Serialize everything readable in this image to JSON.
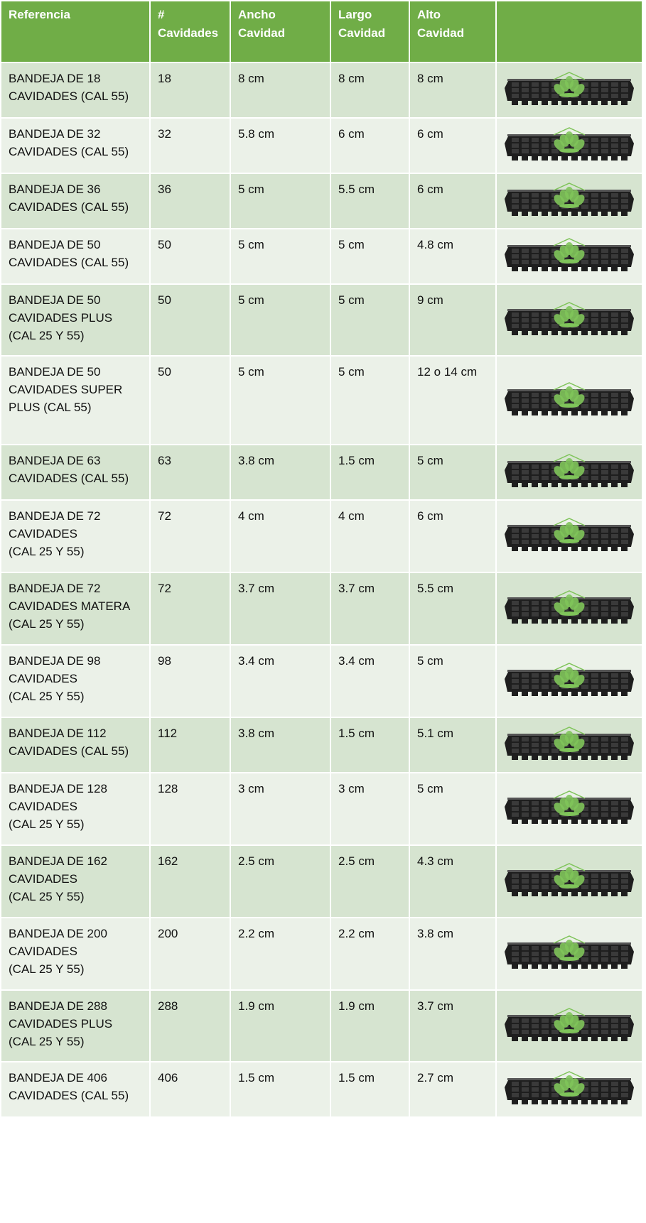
{
  "headers": {
    "reference": "Referencia",
    "cavities_line1": "#",
    "cavities_line2": "Cavidades",
    "width_line1": "Ancho",
    "width_line2": "Cavidad",
    "length_line1": "Largo",
    "length_line2": "Cavidad",
    "height_line1": "Alto",
    "height_line2": "Cavidad",
    "image": ""
  },
  "colors": {
    "header_green": "#70ad47",
    "row_dark": "#d6e4d0",
    "row_light": "#ebf1e8",
    "tray": "#1e1e1e",
    "logo": "#7fc45a"
  },
  "rows": [
    {
      "ref": [
        "BANDEJA DE 18",
        "CAVIDADES (CAL 55)"
      ],
      "cavities": "18",
      "width": "8 cm",
      "length": "8 cm",
      "height": "8 cm",
      "image_icon": "seedling-tray-icon"
    },
    {
      "ref": [
        "BANDEJA DE 32",
        "CAVIDADES (CAL 55)"
      ],
      "cavities": "32",
      "width": "5.8 cm",
      "length": "6 cm",
      "height": "6 cm",
      "image_icon": "seedling-tray-icon"
    },
    {
      "ref": [
        "BANDEJA DE 36",
        "CAVIDADES (CAL 55)"
      ],
      "cavities": "36",
      "width": "5 cm",
      "length": "5.5 cm",
      "height": "6 cm",
      "image_icon": "seedling-tray-icon"
    },
    {
      "ref": [
        "BANDEJA DE 50",
        "CAVIDADES (CAL 55)"
      ],
      "cavities": "50",
      "width": "5 cm",
      "length": "5 cm",
      "height": "4.8 cm",
      "image_icon": "seedling-tray-icon"
    },
    {
      "ref": [
        "BANDEJA DE 50",
        "CAVIDADES PLUS",
        "(CAL 25 Y 55)"
      ],
      "cavities": "50",
      "width": "5 cm",
      "length": "5 cm",
      "height": "9 cm",
      "image_icon": "seedling-tray-icon"
    },
    {
      "ref": [
        "BANDEJA DE 50",
        "CAVIDADES SUPER",
        "PLUS (CAL 55)"
      ],
      "cavities": "50",
      "width": "5 cm",
      "length": "5 cm",
      "height": "12 o 14 cm",
      "image_icon": "seedling-tray-icon"
    },
    {
      "ref": [
        "BANDEJA DE 63",
        "CAVIDADES (CAL 55)"
      ],
      "cavities": "63",
      "width": "3.8 cm",
      "length": "1.5 cm",
      "height": "5 cm",
      "image_icon": "seedling-tray-icon"
    },
    {
      "ref": [
        "BANDEJA DE 72",
        "CAVIDADES",
        "(CAL 25 Y 55)"
      ],
      "cavities": "72",
      "width": "4 cm",
      "length": "4 cm",
      "height": "6 cm",
      "image_icon": "seedling-tray-icon"
    },
    {
      "ref": [
        "BANDEJA DE 72",
        "CAVIDADES MATERA",
        "(CAL 25 Y 55)"
      ],
      "cavities": "72",
      "width": "3.7 cm",
      "length": "3.7 cm",
      "height": "5.5 cm",
      "image_icon": "seedling-tray-icon"
    },
    {
      "ref": [
        "BANDEJA DE 98",
        "CAVIDADES",
        "(CAL 25 Y 55)"
      ],
      "cavities": "98",
      "width": "3.4 cm",
      "length": "3.4 cm",
      "height": "5 cm",
      "image_icon": "seedling-tray-icon"
    },
    {
      "ref": [
        "BANDEJA DE 112",
        "CAVIDADES (CAL 55)"
      ],
      "cavities": "112",
      "width": "3.8 cm",
      "length": "1.5 cm",
      "height": "5.1 cm",
      "image_icon": "seedling-tray-icon"
    },
    {
      "ref": [
        "BANDEJA DE 128",
        "CAVIDADES",
        "(CAL 25 Y 55)"
      ],
      "cavities": "128",
      "width": "3 cm",
      "length": "3 cm",
      "height": "5 cm",
      "image_icon": "seedling-tray-icon"
    },
    {
      "ref": [
        "BANDEJA DE 162",
        "CAVIDADES",
        "(CAL 25 Y 55)"
      ],
      "cavities": "162",
      "width": "2.5 cm",
      "length": "2.5 cm",
      "height": "4.3 cm",
      "image_icon": "seedling-tray-icon"
    },
    {
      "ref": [
        "BANDEJA DE 200",
        "CAVIDADES",
        "(CAL 25 Y 55)"
      ],
      "cavities": "200",
      "width": "2.2 cm",
      "length": "2.2 cm",
      "height": "3.8 cm",
      "image_icon": "seedling-tray-icon"
    },
    {
      "ref": [
        "BANDEJA DE 288",
        "CAVIDADES PLUS",
        "(CAL 25 Y 55)"
      ],
      "cavities": "288",
      "width": "1.9 cm",
      "length": "1.9 cm",
      "height": "3.7 cm",
      "image_icon": "seedling-tray-icon"
    },
    {
      "ref": [
        "BANDEJA DE 406",
        "CAVIDADES (CAL 55)"
      ],
      "cavities": "406",
      "width": "1.5 cm",
      "length": "1.5 cm",
      "height": "2.7 cm",
      "image_icon": "seedling-tray-icon"
    }
  ]
}
